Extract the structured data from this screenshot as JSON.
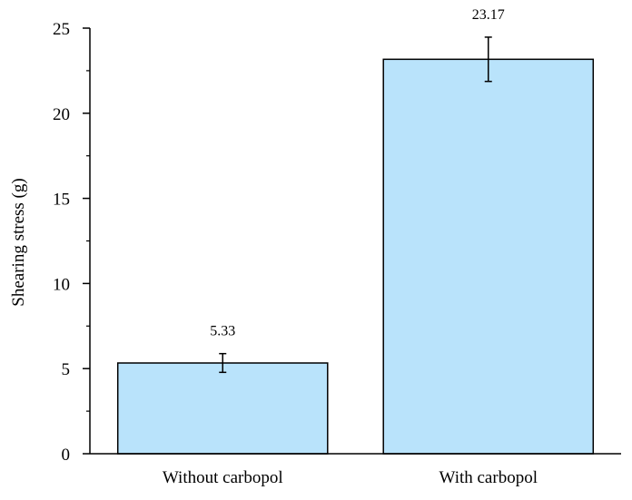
{
  "chart_data": {
    "type": "bar",
    "categories": [
      "Without carbopol",
      "With carbopol"
    ],
    "values": [
      5.33,
      23.17
    ],
    "errors": [
      0.55,
      1.3
    ],
    "value_labels": [
      "5.33",
      "23.17"
    ],
    "title": "",
    "xlabel": "",
    "ylabel": "Shearing stress (g)",
    "ylim": [
      0,
      25
    ],
    "yticks": [
      0,
      5,
      10,
      15,
      20,
      25
    ],
    "grid": false,
    "bar_color": "#b9e3fb",
    "edge_color": "#000000"
  }
}
